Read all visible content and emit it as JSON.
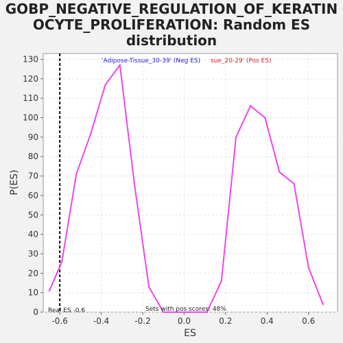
{
  "title_lines": [
    "GOBP_NEGATIVE_REGULATION_OF_KERATIN",
    "OCYTE_PROLIFERATION: Random ES",
    "distribution"
  ],
  "colors": {
    "line": "#ee44ee",
    "neg": "#1a1acc",
    "pos": "#cc2222",
    "real_es": "#000000"
  },
  "chart_data": {
    "type": "line",
    "title": "GOBP_NEGATIVE_REGULATION_OF_KERATINOCYTE_PROLIFERATION: Random ES distribution",
    "xlabel": "ES",
    "ylabel": "P(ES)",
    "xlim": [
      -0.68,
      0.74
    ],
    "ylim": [
      0,
      133
    ],
    "xticks": [
      -0.6,
      -0.4,
      -0.2,
      0.0,
      0.2,
      0.4,
      0.6
    ],
    "xtick_labels": [
      "-0.6",
      "-0.4",
      "-0.2",
      "0.0",
      "0.2",
      "0.4",
      "0.6"
    ],
    "yticks": [
      0,
      10,
      20,
      30,
      40,
      50,
      60,
      70,
      80,
      90,
      100,
      110,
      120,
      130
    ],
    "ytick_labels": [
      "0",
      "10",
      "20",
      "30",
      "40",
      "50",
      "60",
      "70",
      "80",
      "90",
      "100",
      "110",
      "120",
      "130"
    ],
    "grid": true,
    "series": [
      {
        "x": [
          -0.65,
          -0.59,
          -0.52,
          -0.45,
          -0.38,
          -0.31,
          -0.24,
          -0.17,
          -0.1,
          -0.04,
          0.03,
          0.11,
          0.18,
          0.25,
          0.32,
          0.39,
          0.46,
          0.53,
          0.6,
          0.67
        ],
        "values": [
          11,
          26,
          71,
          92,
          117,
          127,
          66,
          13,
          0,
          0,
          0,
          0,
          16,
          90,
          106,
          100,
          72,
          66,
          23,
          4
        ]
      }
    ],
    "real_es": {
      "value": -0.6,
      "label": "Real ES -0.6"
    },
    "annotations": {
      "neg_label": "'Adipose-Tissue_30-39' (Neg ES)",
      "pos_label": "sue_20-29' (Pos ES)",
      "pos_scores": "Sets with pos scores: 48%"
    }
  }
}
